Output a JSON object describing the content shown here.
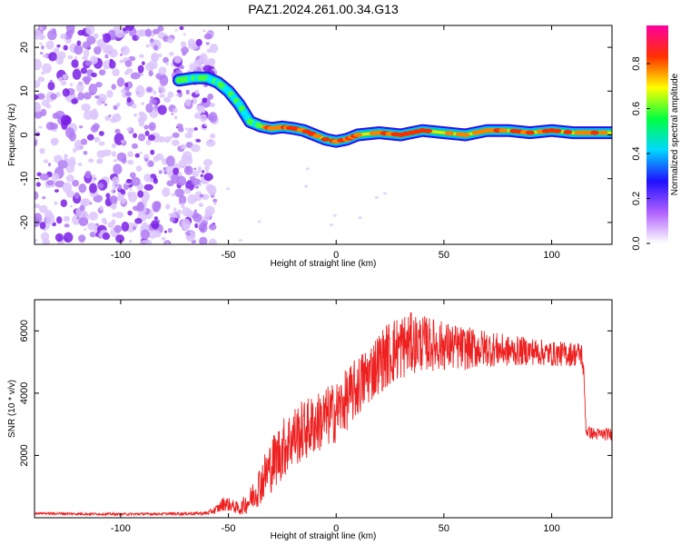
{
  "title": "PAZ1.2024.261.00.34.G13",
  "chart_data": [
    {
      "type": "heatmap",
      "xlabel": "Height of straight line (km)",
      "ylabel": "Frequency (Hz)",
      "xlim": [
        -140,
        128
      ],
      "ylim": [
        -25,
        25
      ],
      "xticks": [
        -100,
        -50,
        0,
        50,
        100
      ],
      "yticks": [
        -20,
        -10,
        0,
        10,
        20
      ],
      "noise_region_x": [
        -140,
        -60
      ],
      "ridge": {
        "x": [
          -73,
          -66,
          -60,
          -55,
          -50,
          -45,
          -40,
          -35,
          -30,
          -25,
          -20,
          -15,
          -10,
          -5,
          0,
          5,
          10,
          20,
          30,
          40,
          50,
          60,
          70,
          80,
          90,
          100,
          110,
          120,
          128
        ],
        "y": [
          12.5,
          13,
          13,
          12,
          10,
          7,
          3,
          2,
          1.5,
          1.8,
          1.5,
          1,
          0,
          -1,
          -1.5,
          -1,
          0,
          0.5,
          0,
          1,
          0.5,
          0,
          1,
          1,
          0.5,
          1,
          0.5,
          0.5,
          0.5
        ]
      },
      "colorbar": {
        "label": "Normalized spectral amplitude",
        "ticks": [
          0.0,
          0.2,
          0.4,
          0.6,
          0.8
        ],
        "tick_labels": [
          "0.0",
          "0.2",
          "0.4",
          "0.6",
          "0.8"
        ],
        "range": [
          0,
          0.97
        ],
        "colors": [
          "#ffffff",
          "#b060ff",
          "#2010ff",
          "#00d8ff",
          "#00ff40",
          "#ffff00",
          "#ff3000",
          "#ff00a0"
        ]
      },
      "grid": false
    },
    {
      "type": "line",
      "xlabel": "Height of straight line (km)",
      "ylabel": "SNR (10 * v/v)",
      "xlim": [
        -140,
        128
      ],
      "ylim": [
        0,
        7000
      ],
      "xticks": [
        -100,
        -50,
        0,
        50,
        100
      ],
      "yticks": [
        2000,
        4000,
        6000
      ],
      "series": [
        {
          "color": "#ee2020",
          "x": [
            -140,
            -120,
            -100,
            -80,
            -60,
            -55,
            -52,
            -48,
            -45,
            -40,
            -35,
            -30,
            -25,
            -20,
            -15,
            -10,
            -5,
            0,
            5,
            10,
            15,
            20,
            25,
            30,
            35,
            40,
            50,
            60,
            70,
            80,
            90,
            100,
            110,
            114,
            115,
            116,
            120,
            128
          ],
          "y": [
            150,
            130,
            120,
            130,
            150,
            300,
            500,
            400,
            300,
            600,
            1200,
            1800,
            2300,
            2700,
            2900,
            3100,
            3300,
            3500,
            3900,
            4300,
            4700,
            5100,
            5400,
            5600,
            5700,
            5700,
            5600,
            5500,
            5500,
            5400,
            5400,
            5300,
            5300,
            5300,
            4500,
            2800,
            2700,
            2700
          ],
          "noise_amplitude": [
            40,
            40,
            40,
            40,
            60,
            150,
            250,
            200,
            200,
            400,
            700,
            900,
            1000,
            1000,
            1000,
            1000,
            1000,
            1000,
            1000,
            1000,
            1000,
            1000,
            1100,
            1100,
            1000,
            900,
            800,
            700,
            600,
            500,
            450,
            400,
            400,
            400,
            300,
            200,
            200,
            200
          ]
        }
      ],
      "grid": false
    }
  ]
}
